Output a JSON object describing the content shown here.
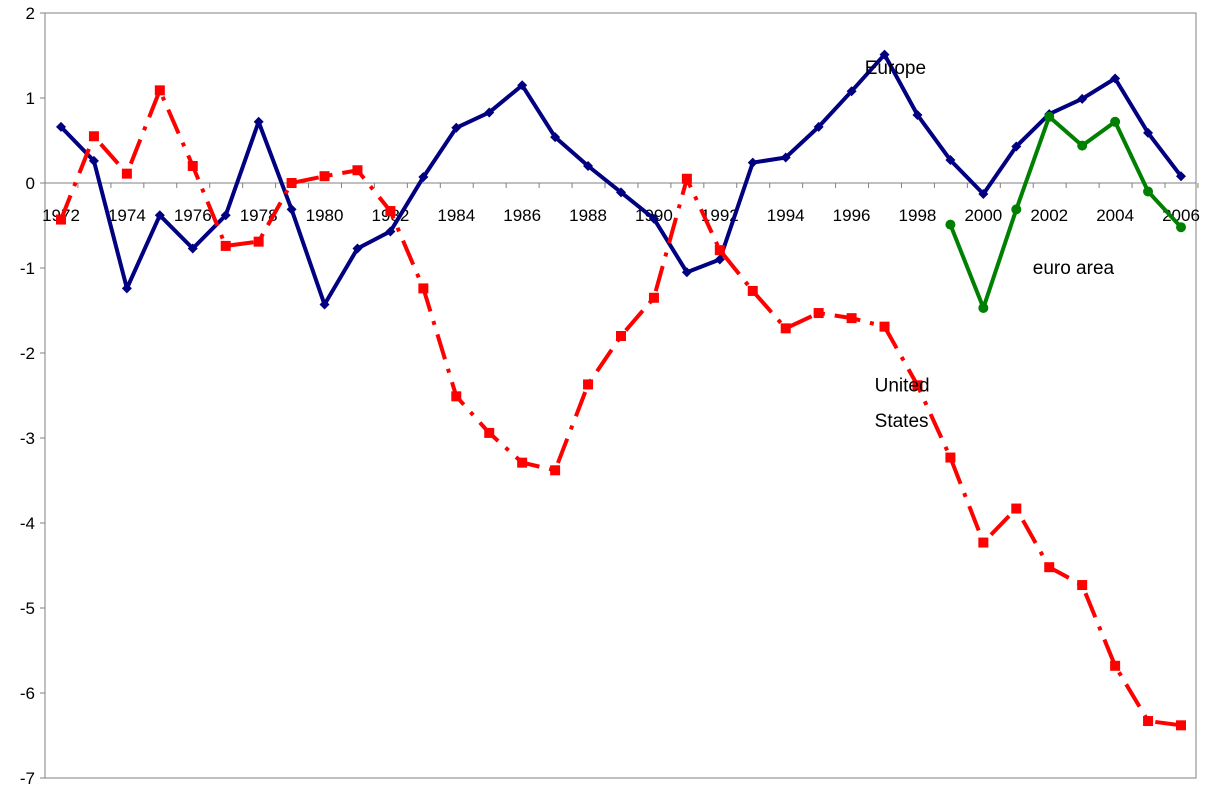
{
  "chart_data": {
    "type": "line",
    "title": "",
    "xlabel": "",
    "ylabel": "",
    "ylim": [
      -7,
      2
    ],
    "xlim": [
      1972,
      2006
    ],
    "yticks": [
      2,
      1,
      0,
      -1,
      -2,
      -3,
      -4,
      -5,
      -6,
      -7
    ],
    "xticks": [
      1972,
      1974,
      1976,
      1978,
      1980,
      1982,
      1984,
      1986,
      1988,
      1990,
      1992,
      1994,
      1996,
      1998,
      2000,
      2002,
      2004,
      2006
    ],
    "grid": false,
    "legend": "none",
    "series": [
      {
        "name": "Europe",
        "color": "#000080",
        "line_style": "solid",
        "marker": "diamond",
        "x": [
          1972,
          1973,
          1974,
          1975,
          1976,
          1977,
          1978,
          1979,
          1980,
          1981,
          1982,
          1983,
          1984,
          1985,
          1986,
          1987,
          1988,
          1989,
          1990,
          1991,
          1992,
          1993,
          1994,
          1995,
          1996,
          1997,
          1998,
          1999,
          2000,
          2001,
          2002,
          2003,
          2004,
          2005,
          2006
        ],
        "values": [
          0.66,
          0.26,
          -1.24,
          -0.38,
          -0.77,
          -0.38,
          0.72,
          -0.31,
          -1.43,
          -0.77,
          -0.57,
          0.07,
          0.65,
          0.83,
          1.15,
          0.54,
          0.2,
          -0.11,
          -0.42,
          -1.05,
          -0.9,
          0.24,
          0.3,
          0.66,
          1.08,
          1.51,
          0.8,
          0.27,
          -0.13,
          0.43,
          0.81,
          0.99,
          1.23,
          0.59,
          0.08
        ]
      },
      {
        "name": "United States",
        "color": "#ff0000",
        "line_style": "dash-dot",
        "marker": "square",
        "x": [
          1972,
          1973,
          1974,
          1975,
          1976,
          1977,
          1978,
          1979,
          1980,
          1981,
          1982,
          1983,
          1984,
          1985,
          1986,
          1987,
          1988,
          1989,
          1990,
          1991,
          1992,
          1993,
          1994,
          1995,
          1996,
          1997,
          1998,
          1999,
          2000,
          2001,
          2002,
          2003,
          2004,
          2005,
          2006
        ],
        "values": [
          -0.43,
          0.55,
          0.11,
          1.09,
          0.2,
          -0.74,
          -0.69,
          0.0,
          0.08,
          0.15,
          -0.33,
          -1.24,
          -2.51,
          -2.94,
          -3.29,
          -3.38,
          -2.37,
          -1.8,
          -1.35,
          0.05,
          -0.79,
          -1.27,
          -1.71,
          -1.53,
          -1.59,
          -1.69,
          -2.38,
          -3.23,
          -4.23,
          -3.83,
          -4.52,
          -4.73,
          -5.68,
          -6.33,
          -6.38
        ]
      },
      {
        "name": "euro area",
        "color": "#008000",
        "line_style": "solid",
        "marker": "circle",
        "x": [
          1999,
          2000,
          2001,
          2002,
          2003,
          2004,
          2005,
          2006
        ],
        "values": [
          -0.49,
          -1.47,
          -0.31,
          0.78,
          0.44,
          0.72,
          -0.1,
          -0.52
        ]
      }
    ],
    "annotations": [
      {
        "text": "Europe",
        "x": 1996.4,
        "y": 1.28
      },
      {
        "text": "euro area",
        "x": 2001.5,
        "y": -1.07
      },
      {
        "text": "United",
        "x": 1996.7,
        "y": -2.45
      },
      {
        "text": "States",
        "x": 1996.7,
        "y": -2.87
      }
    ]
  }
}
